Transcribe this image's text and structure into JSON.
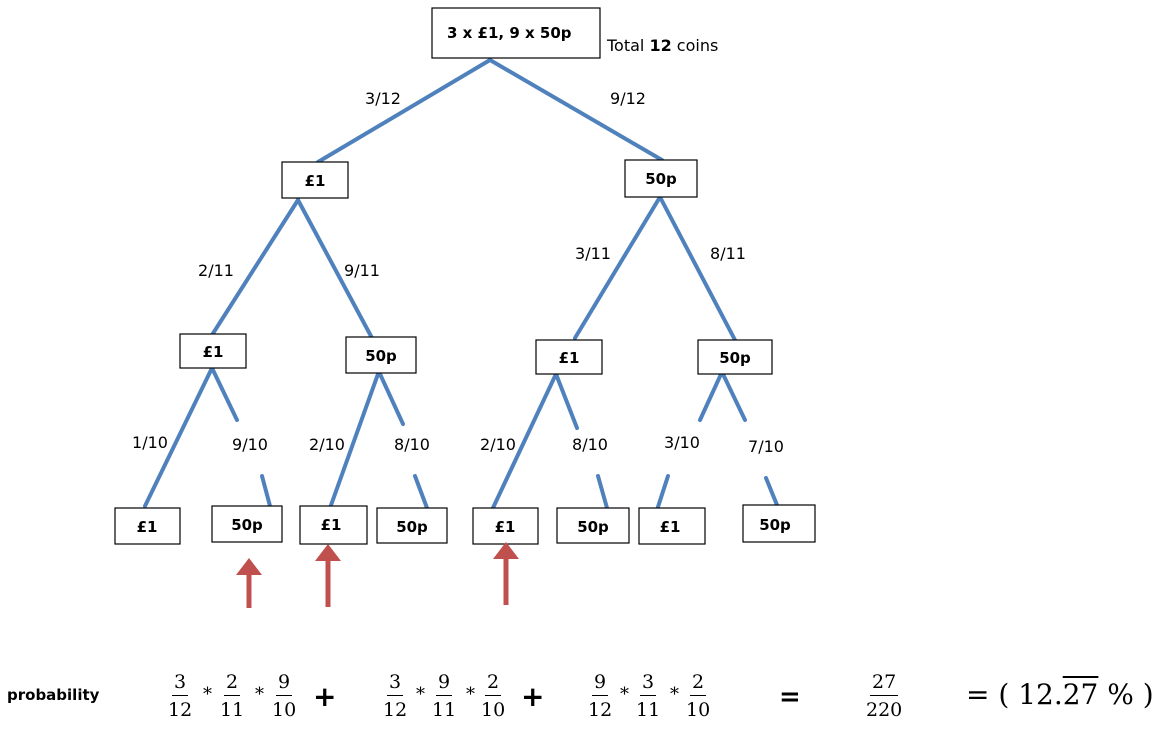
{
  "root": {
    "label": "3 x £1, 9 x 50p",
    "total_prefix": "Total ",
    "total_count": "12",
    "total_suffix": " coins"
  },
  "level1": [
    {
      "label": "£1",
      "prob": "3/12"
    },
    {
      "label": "50p",
      "prob": "9/12"
    }
  ],
  "level2": [
    {
      "label": "£1",
      "prob": "2/11"
    },
    {
      "label": "50p",
      "prob": "9/11"
    },
    {
      "label": "£1",
      "prob": "3/11"
    },
    {
      "label": "50p",
      "prob": "8/11"
    }
  ],
  "level3": [
    {
      "label": "£1",
      "prob": "1/10"
    },
    {
      "label": "50p",
      "prob": "9/10"
    },
    {
      "label": "£1",
      "prob": "2/10"
    },
    {
      "label": "50p",
      "prob": "8/10"
    },
    {
      "label": "£1",
      "prob": "2/10"
    },
    {
      "label": "50p",
      "prob": "8/10"
    },
    {
      "label": "£1",
      "prob": "3/10"
    },
    {
      "label": "50p",
      "prob": "7/10"
    }
  ],
  "colors": {
    "branch": "#4f81bd",
    "arrow": "#c0504d"
  },
  "formula": {
    "label": "probability",
    "terms": [
      [
        [
          "3",
          "12"
        ],
        [
          "2",
          "11"
        ],
        [
          "9",
          "10"
        ]
      ],
      [
        [
          "3",
          "12"
        ],
        [
          "9",
          "11"
        ],
        [
          "2",
          "10"
        ]
      ],
      [
        "9",
        "12"
      ],
      [
        [
          "3",
          "11"
        ]
      ],
      [
        "2",
        "10"
      ]
    ],
    "t1": {
      "a": {
        "n": "3",
        "d": "12"
      },
      "b": {
        "n": "2",
        "d": "11"
      },
      "c": {
        "n": "9",
        "d": "10"
      }
    },
    "t2": {
      "a": {
        "n": "3",
        "d": "12"
      },
      "b": {
        "n": "9",
        "d": "11"
      },
      "c": {
        "n": "2",
        "d": "10"
      }
    },
    "t3": {
      "a": {
        "n": "9",
        "d": "12"
      },
      "b": {
        "n": "3",
        "d": "11"
      },
      "c": {
        "n": "2",
        "d": "10"
      }
    },
    "times": "*",
    "plus": "+",
    "equals": "=",
    "result": {
      "n": "27",
      "d": "220"
    },
    "percent_open": "= (",
    "percent_int": "12.",
    "percent_repeat": "27",
    "percent_close": "% )"
  }
}
